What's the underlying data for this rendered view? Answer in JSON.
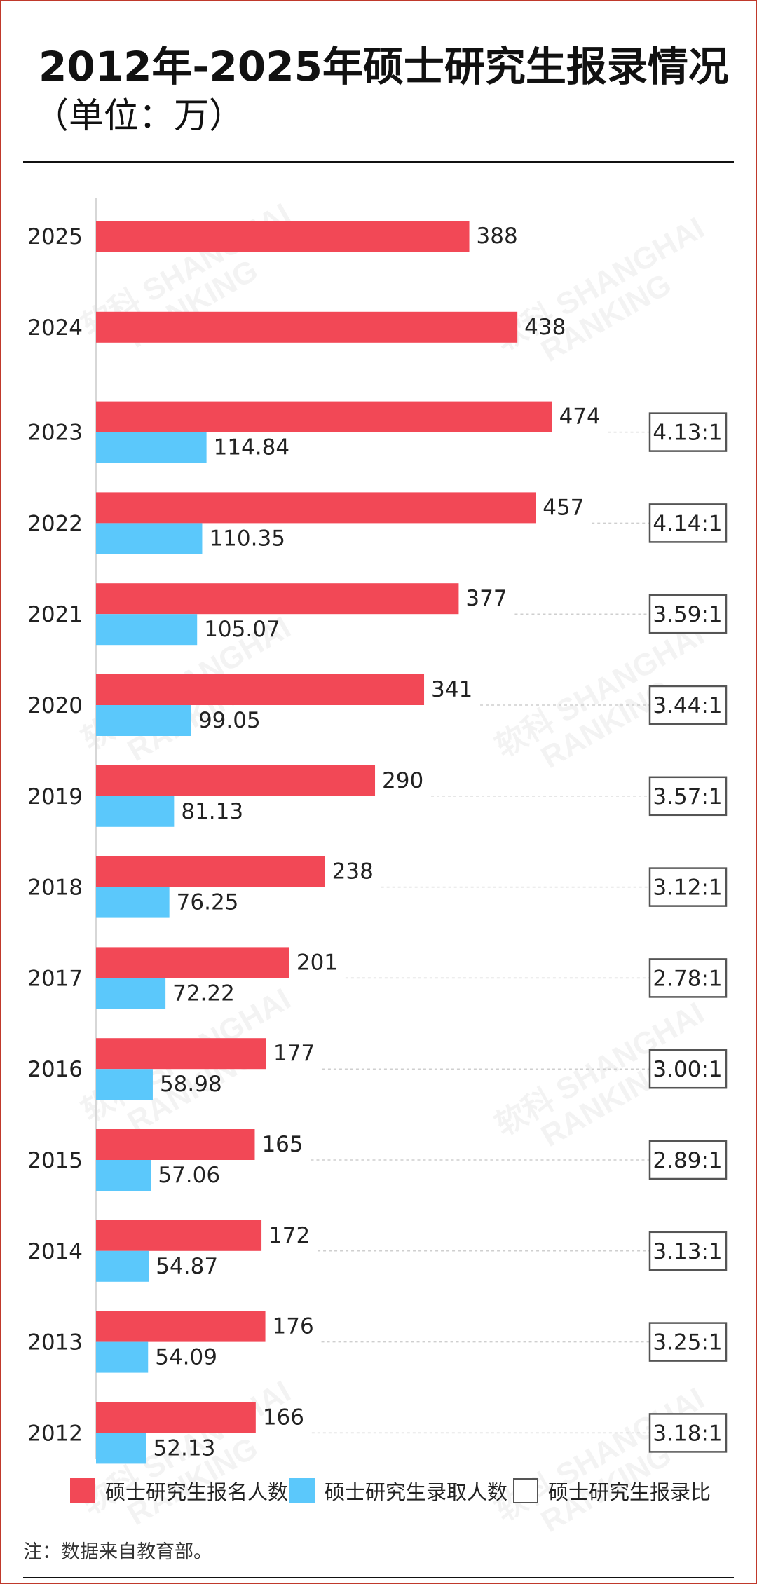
{
  "title": "2012年-2025年硕士研究生报录情况",
  "subtitle": "（单位：万）",
  "colors": {
    "applicants": "#f24856",
    "admitted": "#5bc8fb",
    "ratio_border": "#555555"
  },
  "chart_data": {
    "type": "bar",
    "orientation": "horizontal",
    "categories": [
      "2025",
      "2024",
      "2023",
      "2022",
      "2021",
      "2020",
      "2019",
      "2018",
      "2017",
      "2016",
      "2015",
      "2014",
      "2013",
      "2012"
    ],
    "series": [
      {
        "name": "硕士研究生报名人数",
        "values": [
          388,
          438,
          474,
          457,
          377,
          341,
          290,
          238,
          201,
          177,
          165,
          172,
          176,
          166
        ],
        "labels": [
          "388",
          "438",
          "474",
          "457",
          "377",
          "341",
          "290",
          "238",
          "201",
          "177",
          "165",
          "172",
          "176",
          "166"
        ]
      },
      {
        "name": "硕士研究生录取人数",
        "values": [
          null,
          null,
          114.84,
          110.35,
          105.07,
          99.05,
          81.13,
          76.25,
          72.22,
          58.98,
          57.06,
          54.87,
          54.09,
          52.13
        ],
        "labels": [
          "",
          "",
          "114.84",
          "110.35",
          "105.07",
          "99.05",
          "81.13",
          "76.25",
          "72.22",
          "58.98",
          "57.06",
          "54.87",
          "54.09",
          "52.13"
        ]
      }
    ],
    "ratio_series": {
      "name": "硕士研究生报录比",
      "labels": [
        "",
        "",
        "4.13:1",
        "4.14:1",
        "3.59:1",
        "3.44:1",
        "3.57:1",
        "3.12:1",
        "2.78:1",
        "3.00:1",
        "2.89:1",
        "3.13:1",
        "3.25:1",
        "3.18:1"
      ]
    },
    "grid": false,
    "legend_position": "bottom"
  },
  "legend": [
    {
      "label": "硕士研究生报名人数",
      "kind": "applicants"
    },
    {
      "label": "硕士研究生录取人数",
      "kind": "admitted"
    },
    {
      "label": "硕士研究生报录比",
      "kind": "ratio"
    }
  ],
  "note": "注：数据来自教育部。",
  "watermark": {
    "line1": "SHANGHAI",
    "line2": "RANKING",
    "mark": "软科"
  }
}
